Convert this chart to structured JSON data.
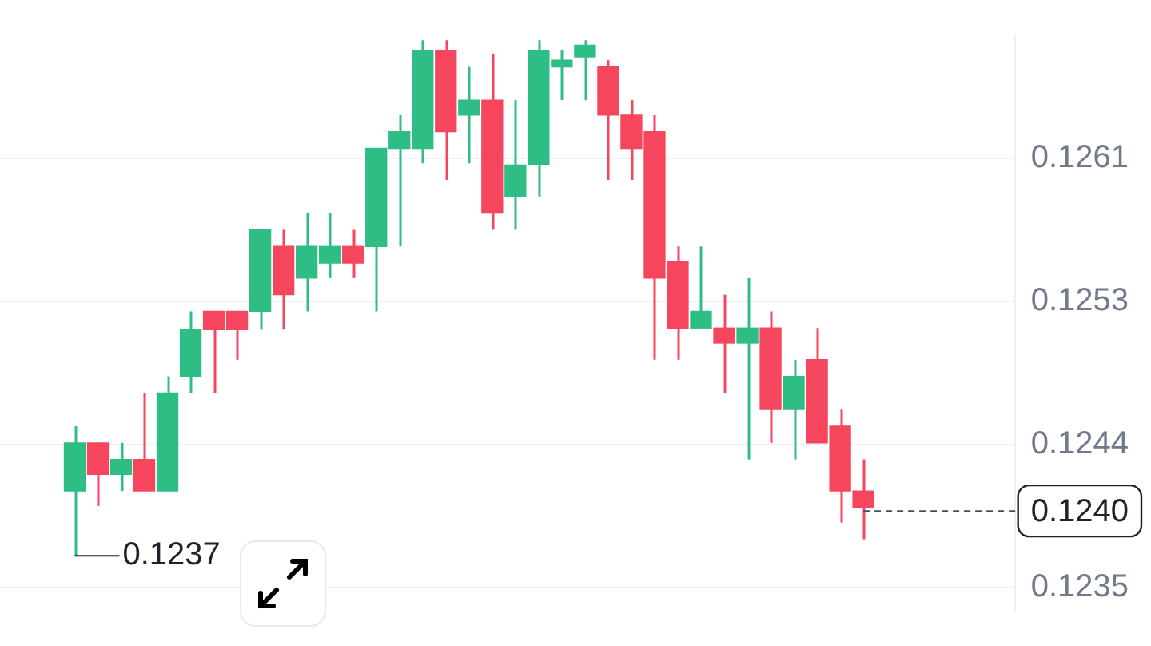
{
  "chart_data": {
    "type": "candlestick",
    "categories": [
      null,
      null,
      null,
      null,
      null,
      null,
      null,
      null,
      null,
      null,
      null,
      null,
      null,
      null,
      null,
      null,
      null,
      null,
      null,
      null,
      null,
      null,
      null,
      null,
      null,
      null,
      null,
      null,
      null,
      null,
      null,
      null,
      null,
      null,
      null
    ],
    "ohlc": [
      [
        0.12412,
        0.12451,
        0.12373,
        0.12441
      ],
      [
        0.12441,
        0.12441,
        0.12403,
        0.12422
      ],
      [
        0.12422,
        0.12441,
        0.12412,
        0.12431
      ],
      [
        0.12431,
        0.12471,
        0.12412,
        0.12412
      ],
      [
        0.12412,
        0.12481,
        0.12412,
        0.12471
      ],
      [
        0.12481,
        0.1252,
        0.12471,
        0.12509
      ],
      [
        0.1252,
        0.1252,
        0.12471,
        0.12509
      ],
      [
        0.1252,
        0.1252,
        0.12491,
        0.12509
      ],
      [
        0.1252,
        0.12569,
        0.12509,
        0.12569
      ],
      [
        0.12559,
        0.12569,
        0.12509,
        0.1253
      ],
      [
        0.1254,
        0.12579,
        0.1252,
        0.12559
      ],
      [
        0.12549,
        0.12579,
        0.1254,
        0.12559
      ],
      [
        0.12559,
        0.12569,
        0.1254,
        0.12549
      ],
      [
        0.12559,
        0.12618,
        0.1252,
        0.12618
      ],
      [
        0.12618,
        0.12638,
        0.12559,
        0.12628
      ],
      [
        0.12618,
        0.12683,
        0.12609,
        0.12677
      ],
      [
        0.12677,
        0.12683,
        0.12599,
        0.12628
      ],
      [
        0.12638,
        0.12667,
        0.12609,
        0.12647
      ],
      [
        0.12647,
        0.12675,
        0.12569,
        0.12579
      ],
      [
        0.12589,
        0.12647,
        0.12569,
        0.12608
      ],
      [
        0.12608,
        0.12683,
        0.12589,
        0.12677
      ],
      [
        0.12667,
        0.12677,
        0.12647,
        0.12671
      ],
      [
        0.12673,
        0.12683,
        0.12647,
        0.1268
      ],
      [
        0.12667,
        0.12671,
        0.12599,
        0.12638
      ],
      [
        0.12638,
        0.12647,
        0.12599,
        0.12618
      ],
      [
        0.12628,
        0.12638,
        0.12491,
        0.1254
      ],
      [
        0.1255,
        0.12559,
        0.12491,
        0.1251
      ],
      [
        0.1251,
        0.12559,
        0.1251,
        0.1252
      ],
      [
        0.1251,
        0.1253,
        0.12471,
        0.12501
      ],
      [
        0.12501,
        0.1254,
        0.12431,
        0.1251
      ],
      [
        0.1251,
        0.1252,
        0.12441,
        0.12461
      ],
      [
        0.12461,
        0.12491,
        0.12431,
        0.12481
      ],
      [
        0.12491,
        0.1251,
        0.12441,
        0.12441
      ],
      [
        0.12451,
        0.12461,
        0.12393,
        0.12412
      ],
      [
        0.12412,
        0.12431,
        0.12383,
        0.12402
      ]
    ],
    "colors": [
      "#2ebd85",
      "#f6465d",
      "#2ebd85",
      "#f6465d",
      "#2ebd85",
      "#2ebd85",
      "#f6465d",
      "#f6465d",
      "#2ebd85",
      "#f6465d",
      "#2ebd85",
      "#2ebd85",
      "#f6465d",
      "#2ebd85",
      "#2ebd85",
      "#2ebd85",
      "#f6465d",
      "#2ebd85",
      "#f6465d",
      "#2ebd85",
      "#2ebd85",
      "#2ebd85",
      "#2ebd85",
      "#f6465d",
      "#f6465d",
      "#f6465d",
      "#f6465d",
      "#2ebd85",
      "#f6465d",
      "#2ebd85",
      "#f6465d",
      "#2ebd85",
      "#f6465d",
      "#f6465d",
      "#f6465d"
    ],
    "ylim": [
      0.1234,
      0.12686
    ],
    "yticks": [
      {
        "value": 0.12354,
        "label": "0.1235"
      },
      {
        "value": 0.1244,
        "label": "0.1244"
      },
      {
        "value": 0.12526,
        "label": "0.1253"
      },
      {
        "value": 0.12612,
        "label": "0.1261"
      }
    ],
    "grid": "y",
    "tick_labels": "y",
    "ref_lines": [
      {
        "axis": "y",
        "value": 0.124,
        "label": "0.1240",
        "color": "#474d57",
        "line_style": "dashed"
      }
    ],
    "annotations": [
      "0.1237"
    ]
  }
}
